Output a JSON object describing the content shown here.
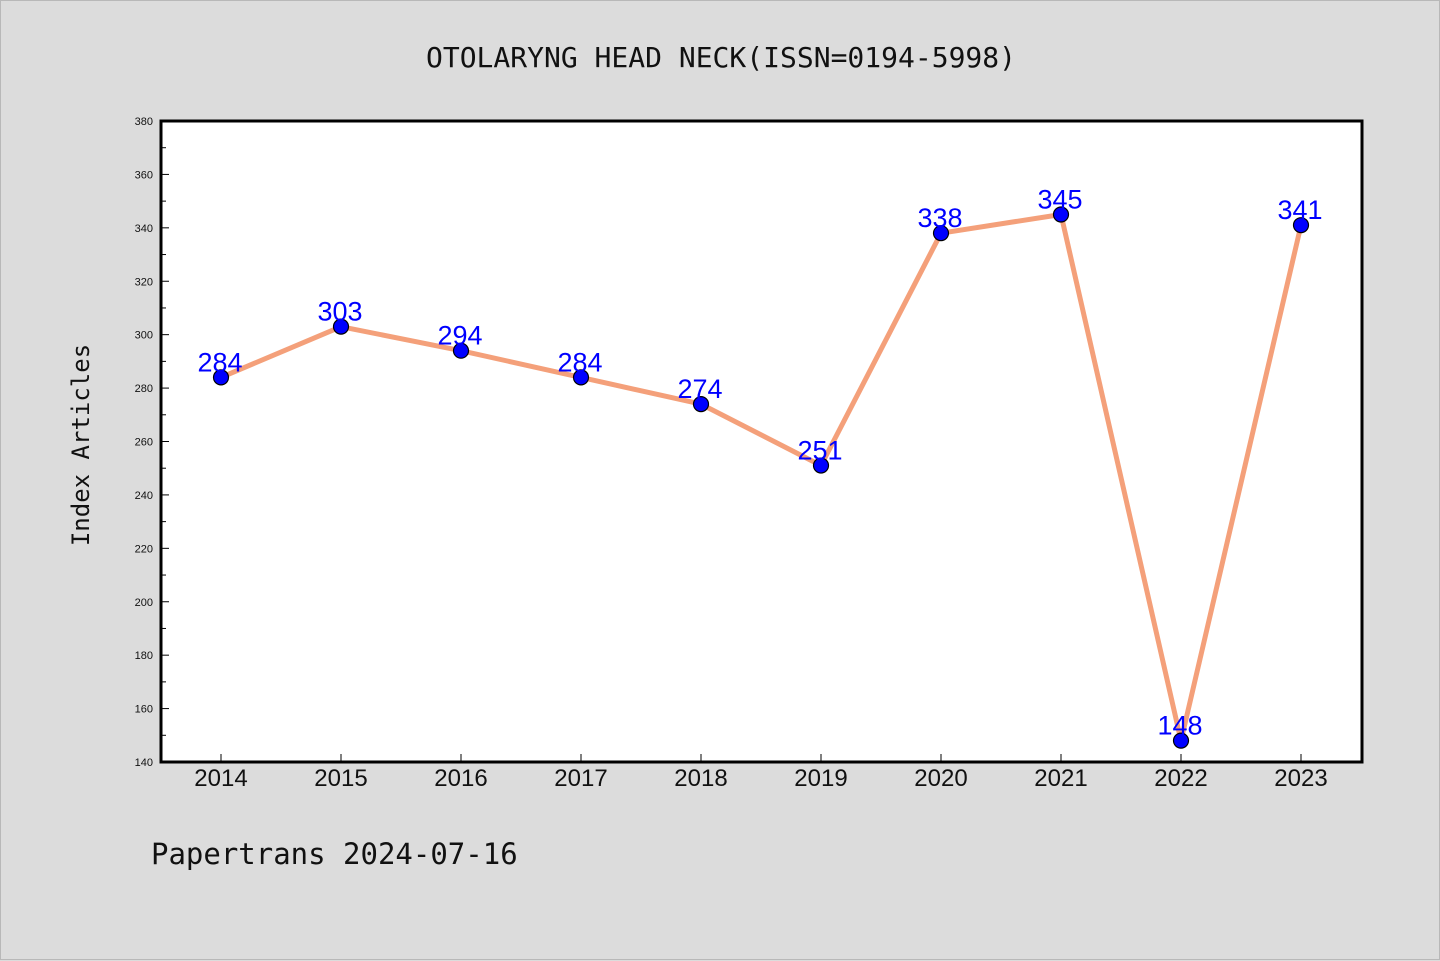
{
  "footer": "Papertrans 2024-07-16",
  "colors": {
    "background": "#dcdcdc",
    "plot_background": "#ffffff",
    "line": "#f4a07a",
    "marker": "#0000ff",
    "data_label": "#0000ff"
  },
  "chart_data": {
    "type": "line",
    "title": "OTOLARYNG HEAD NECK(ISSN=0194-5998)",
    "xlabel": "",
    "ylabel": "Index Articles",
    "categories": [
      "2014",
      "2015",
      "2016",
      "2017",
      "2018",
      "2019",
      "2020",
      "2021",
      "2022",
      "2023"
    ],
    "series": [
      {
        "values": [
          284,
          303,
          294,
          284,
          274,
          251,
          338,
          345,
          148,
          341
        ]
      }
    ],
    "ylim": [
      140,
      380
    ],
    "yticks": [
      140,
      160,
      180,
      200,
      220,
      240,
      260,
      280,
      300,
      320,
      340,
      360,
      380
    ],
    "grid": false,
    "legend": "none",
    "data_labels": true
  }
}
